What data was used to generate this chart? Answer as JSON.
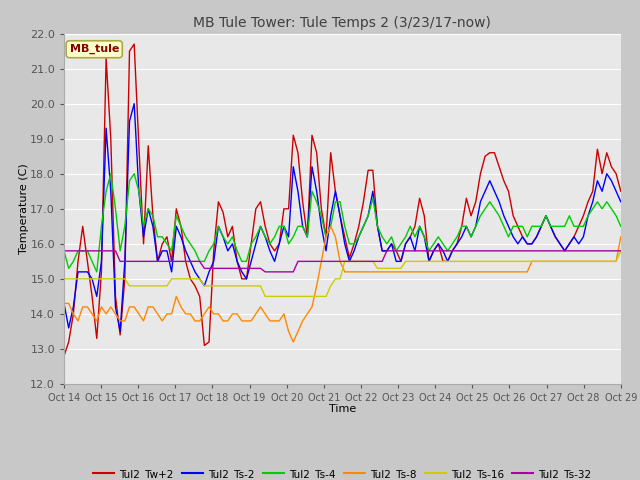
{
  "title": "MB Tule Tower: Tule Temps 2 (3/23/17-now)",
  "xlabel": "Time",
  "ylabel": "Temperature (C)",
  "ylim": [
    12.0,
    22.0
  ],
  "yticks": [
    12.0,
    13.0,
    14.0,
    15.0,
    16.0,
    17.0,
    18.0,
    19.0,
    20.0,
    21.0,
    22.0
  ],
  "xtick_labels": [
    "Oct 14",
    "Oct 15",
    "Oct 16",
    "Oct 17",
    "Oct 18",
    "Oct 19",
    "Oct 20",
    "Oct 21",
    "Oct 22",
    "Oct 23",
    "Oct 24",
    "Oct 25",
    "Oct 26",
    "Oct 27",
    "Oct 28",
    "Oct 29"
  ],
  "fig_bg_color": "#c8c8c8",
  "plot_bg_color": "#e8e8e8",
  "grid_color": "#ffffff",
  "series": {
    "Tul2_Tw+2": {
      "color": "#cc0000",
      "y": [
        12.8,
        13.2,
        14.0,
        15.5,
        16.5,
        15.5,
        14.5,
        13.3,
        15.2,
        21.3,
        19.0,
        14.5,
        13.4,
        15.0,
        21.5,
        21.7,
        18.8,
        16.0,
        18.8,
        16.8,
        15.5,
        16.0,
        16.2,
        15.5,
        17.0,
        16.5,
        15.5,
        15.0,
        14.8,
        14.5,
        13.1,
        13.2,
        15.8,
        17.2,
        16.9,
        16.2,
        16.5,
        15.5,
        15.0,
        15.0,
        16.0,
        17.0,
        17.2,
        16.5,
        16.0,
        15.8,
        16.0,
        17.0,
        17.0,
        19.1,
        18.6,
        17.2,
        16.2,
        19.1,
        18.6,
        17.0,
        16.2,
        18.6,
        17.5,
        16.8,
        16.2,
        15.6,
        16.0,
        16.5,
        17.2,
        18.1,
        18.1,
        16.5,
        15.8,
        15.8,
        16.0,
        15.8,
        15.5,
        16.0,
        16.2,
        16.5,
        17.3,
        16.8,
        15.5,
        15.8,
        16.0,
        15.5,
        15.5,
        15.8,
        16.0,
        16.5,
        17.3,
        16.8,
        17.2,
        18.0,
        18.5,
        18.6,
        18.6,
        18.2,
        17.8,
        17.5,
        16.8,
        16.5,
        16.2,
        16.0,
        16.0,
        16.2,
        16.5,
        16.8,
        16.5,
        16.2,
        16.0,
        15.8,
        16.0,
        16.2,
        16.5,
        16.8,
        17.2,
        17.5,
        18.7,
        18.0,
        18.6,
        18.2,
        18.0,
        17.5
      ]
    },
    "Tul2_Ts-2": {
      "color": "#0000ff",
      "y": [
        14.3,
        13.6,
        14.2,
        15.2,
        15.2,
        15.2,
        15.0,
        14.5,
        15.5,
        19.3,
        17.5,
        14.2,
        13.5,
        15.5,
        19.5,
        20.0,
        17.5,
        16.2,
        17.0,
        16.5,
        15.5,
        15.8,
        15.8,
        15.2,
        16.5,
        16.2,
        15.8,
        15.5,
        15.2,
        15.0,
        14.8,
        15.2,
        15.5,
        16.5,
        16.2,
        15.8,
        16.0,
        15.5,
        15.2,
        15.0,
        15.5,
        16.0,
        16.5,
        16.2,
        15.8,
        15.5,
        16.0,
        16.5,
        16.2,
        18.2,
        17.5,
        16.5,
        16.2,
        18.2,
        17.5,
        16.5,
        15.8,
        16.8,
        17.5,
        16.8,
        16.0,
        15.5,
        15.8,
        16.2,
        16.5,
        16.8,
        17.5,
        16.5,
        15.8,
        15.8,
        16.0,
        15.5,
        15.5,
        16.0,
        16.2,
        15.8,
        16.5,
        16.2,
        15.5,
        15.8,
        16.0,
        15.8,
        15.5,
        15.8,
        16.0,
        16.2,
        16.5,
        16.2,
        16.5,
        17.2,
        17.5,
        17.8,
        17.5,
        17.2,
        16.8,
        16.5,
        16.2,
        16.0,
        16.2,
        16.0,
        16.0,
        16.2,
        16.5,
        16.8,
        16.5,
        16.2,
        16.0,
        15.8,
        16.0,
        16.2,
        16.0,
        16.2,
        16.8,
        17.2,
        17.8,
        17.5,
        18.0,
        17.8,
        17.5,
        17.2
      ]
    },
    "Tul2_Ts-4": {
      "color": "#00cc00",
      "y": [
        15.8,
        15.3,
        15.5,
        15.8,
        15.8,
        15.8,
        15.5,
        15.2,
        16.5,
        17.5,
        18.0,
        17.0,
        15.8,
        16.5,
        17.8,
        18.0,
        17.5,
        16.5,
        17.0,
        16.8,
        16.2,
        16.2,
        16.0,
        15.8,
        16.8,
        16.5,
        16.2,
        16.0,
        15.8,
        15.5,
        15.5,
        15.8,
        16.0,
        16.5,
        16.2,
        16.0,
        16.2,
        15.8,
        15.5,
        15.5,
        16.0,
        16.2,
        16.5,
        16.2,
        16.0,
        16.2,
        16.5,
        16.5,
        16.0,
        16.2,
        16.5,
        16.5,
        16.2,
        17.5,
        17.2,
        16.8,
        16.2,
        16.5,
        17.2,
        17.2,
        16.5,
        16.0,
        16.0,
        16.2,
        16.5,
        16.8,
        17.3,
        16.5,
        16.2,
        16.0,
        16.2,
        15.8,
        16.0,
        16.2,
        16.5,
        16.2,
        16.5,
        16.2,
        15.8,
        16.0,
        16.2,
        16.0,
        15.8,
        16.0,
        16.2,
        16.5,
        16.5,
        16.2,
        16.5,
        16.8,
        17.0,
        17.2,
        17.0,
        16.8,
        16.5,
        16.2,
        16.5,
        16.5,
        16.5,
        16.2,
        16.5,
        16.5,
        16.5,
        16.8,
        16.5,
        16.5,
        16.5,
        16.5,
        16.8,
        16.5,
        16.5,
        16.5,
        16.8,
        17.0,
        17.2,
        17.0,
        17.2,
        17.0,
        16.8,
        16.5
      ]
    },
    "Tul2_Ts-8": {
      "color": "#ff8800",
      "y": [
        14.3,
        14.3,
        14.0,
        13.8,
        14.2,
        14.2,
        14.0,
        13.8,
        14.2,
        14.0,
        14.2,
        14.0,
        13.8,
        13.8,
        14.2,
        14.2,
        14.0,
        13.8,
        14.2,
        14.2,
        14.0,
        13.8,
        14.0,
        14.0,
        14.5,
        14.2,
        14.0,
        14.0,
        13.8,
        13.8,
        14.0,
        14.2,
        14.0,
        14.0,
        13.8,
        13.8,
        14.0,
        14.0,
        13.8,
        13.8,
        13.8,
        14.0,
        14.2,
        14.0,
        13.8,
        13.8,
        13.8,
        14.0,
        13.5,
        13.2,
        13.5,
        13.8,
        14.0,
        14.2,
        14.8,
        15.5,
        16.2,
        16.5,
        16.2,
        15.5,
        15.2,
        15.2,
        15.2,
        15.2,
        15.2,
        15.2,
        15.2,
        15.2,
        15.2,
        15.2,
        15.2,
        15.2,
        15.2,
        15.2,
        15.2,
        15.2,
        15.2,
        15.2,
        15.2,
        15.2,
        15.2,
        15.2,
        15.2,
        15.2,
        15.2,
        15.2,
        15.2,
        15.2,
        15.2,
        15.2,
        15.2,
        15.2,
        15.2,
        15.2,
        15.2,
        15.2,
        15.2,
        15.2,
        15.2,
        15.2,
        15.5,
        15.5,
        15.5,
        15.5,
        15.5,
        15.5,
        15.5,
        15.5,
        15.5,
        15.5,
        15.5,
        15.5,
        15.5,
        15.5,
        15.5,
        15.5,
        15.5,
        15.5,
        15.5,
        16.2
      ]
    },
    "Tul2_Ts-16": {
      "color": "#cccc00",
      "y": [
        15.0,
        15.0,
        15.0,
        15.0,
        15.0,
        15.0,
        15.0,
        15.0,
        15.0,
        15.0,
        15.0,
        15.0,
        15.0,
        15.0,
        14.8,
        14.8,
        14.8,
        14.8,
        14.8,
        14.8,
        14.8,
        14.8,
        14.8,
        15.0,
        15.0,
        15.0,
        15.0,
        15.0,
        15.0,
        15.0,
        14.8,
        14.8,
        14.8,
        14.8,
        14.8,
        14.8,
        14.8,
        14.8,
        14.8,
        14.8,
        14.8,
        14.8,
        14.8,
        14.5,
        14.5,
        14.5,
        14.5,
        14.5,
        14.5,
        14.5,
        14.5,
        14.5,
        14.5,
        14.5,
        14.5,
        14.5,
        14.5,
        14.8,
        15.0,
        15.0,
        15.5,
        15.5,
        15.5,
        15.5,
        15.5,
        15.5,
        15.5,
        15.3,
        15.3,
        15.3,
        15.3,
        15.3,
        15.3,
        15.5,
        15.5,
        15.5,
        15.5,
        15.5,
        15.5,
        15.5,
        15.5,
        15.5,
        15.5,
        15.5,
        15.5,
        15.5,
        15.5,
        15.5,
        15.5,
        15.5,
        15.5,
        15.5,
        15.5,
        15.5,
        15.5,
        15.5,
        15.5,
        15.5,
        15.5,
        15.5,
        15.5,
        15.5,
        15.5,
        15.5,
        15.5,
        15.5,
        15.5,
        15.5,
        15.5,
        15.5,
        15.5,
        15.5,
        15.5,
        15.5,
        15.5,
        15.5,
        15.5,
        15.5,
        15.5,
        15.8
      ]
    },
    "Tul2_Ts-32": {
      "color": "#aa00aa",
      "y": [
        15.8,
        15.8,
        15.8,
        15.8,
        15.8,
        15.8,
        15.8,
        15.8,
        15.8,
        15.8,
        15.8,
        15.8,
        15.5,
        15.5,
        15.5,
        15.5,
        15.5,
        15.5,
        15.5,
        15.5,
        15.5,
        15.5,
        15.5,
        15.5,
        15.5,
        15.5,
        15.5,
        15.5,
        15.5,
        15.5,
        15.3,
        15.3,
        15.3,
        15.3,
        15.3,
        15.3,
        15.3,
        15.3,
        15.3,
        15.3,
        15.3,
        15.3,
        15.3,
        15.2,
        15.2,
        15.2,
        15.2,
        15.2,
        15.2,
        15.2,
        15.5,
        15.5,
        15.5,
        15.5,
        15.5,
        15.5,
        15.5,
        15.5,
        15.5,
        15.5,
        15.5,
        15.5,
        15.5,
        15.5,
        15.5,
        15.5,
        15.5,
        15.5,
        15.5,
        15.8,
        15.8,
        15.8,
        15.8,
        15.8,
        15.8,
        15.8,
        15.8,
        15.8,
        15.8,
        15.8,
        15.8,
        15.8,
        15.8,
        15.8,
        15.8,
        15.8,
        15.8,
        15.8,
        15.8,
        15.8,
        15.8,
        15.8,
        15.8,
        15.8,
        15.8,
        15.8,
        15.8,
        15.8,
        15.8,
        15.8,
        15.8,
        15.8,
        15.8,
        15.8,
        15.8,
        15.8,
        15.8,
        15.8,
        15.8,
        15.8,
        15.8,
        15.8,
        15.8,
        15.8,
        15.8,
        15.8,
        15.8,
        15.8,
        15.8,
        15.8
      ]
    }
  }
}
